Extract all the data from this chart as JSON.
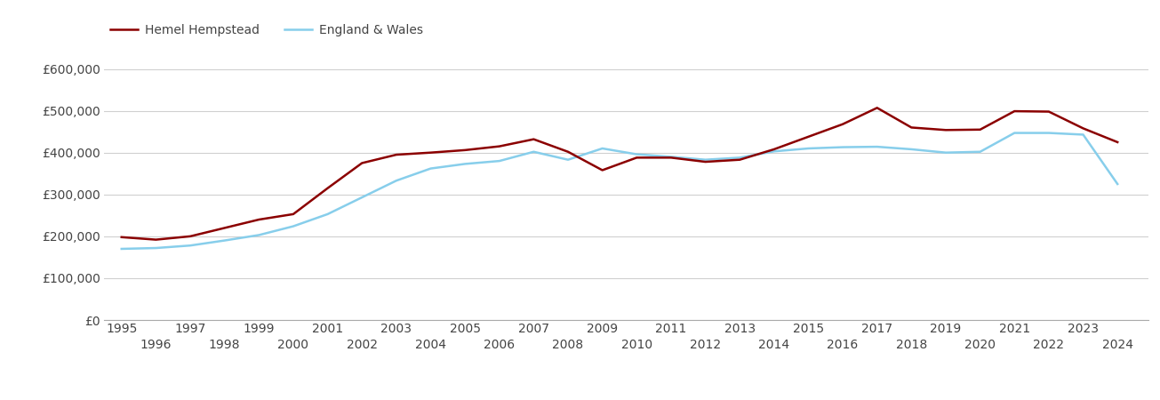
{
  "hemel_years": [
    1995,
    1996,
    1997,
    1998,
    1999,
    2000,
    2001,
    2002,
    2003,
    2004,
    2005,
    2006,
    2007,
    2008,
    2009,
    2010,
    2011,
    2012,
    2013,
    2014,
    2015,
    2016,
    2017,
    2018,
    2019,
    2020,
    2021,
    2022,
    2023,
    2024
  ],
  "hemel_values": [
    198000,
    192000,
    200000,
    220000,
    240000,
    253000,
    315000,
    375000,
    395000,
    400000,
    406000,
    415000,
    432000,
    402000,
    358000,
    388000,
    388000,
    378000,
    383000,
    408000,
    438000,
    468000,
    507000,
    460000,
    454000,
    455000,
    499000,
    498000,
    458000,
    425000
  ],
  "england_years": [
    1995,
    1996,
    1997,
    1998,
    1999,
    2000,
    2001,
    2002,
    2003,
    2004,
    2005,
    2006,
    2007,
    2008,
    2009,
    2010,
    2011,
    2012,
    2013,
    2014,
    2015,
    2016,
    2017,
    2018,
    2019,
    2020,
    2021,
    2022,
    2023,
    2024
  ],
  "england_values": [
    170000,
    172000,
    178000,
    190000,
    203000,
    224000,
    253000,
    293000,
    333000,
    362000,
    373000,
    380000,
    402000,
    383000,
    410000,
    396000,
    390000,
    383000,
    388000,
    403000,
    410000,
    413000,
    414000,
    408000,
    400000,
    402000,
    447000,
    447000,
    443000,
    325000
  ],
  "hemel_color": "#8B0000",
  "england_color": "#87CEEB",
  "legend_labels": [
    "Hemel Hempstead",
    "England & Wales"
  ],
  "ylim": [
    0,
    650000
  ],
  "yticks": [
    0,
    100000,
    200000,
    300000,
    400000,
    500000,
    600000
  ],
  "ytick_labels": [
    "£0",
    "£100,000",
    "£200,000",
    "£300,000",
    "£400,000",
    "£500,000",
    "£600,000"
  ],
  "xlim_min": 1994.5,
  "xlim_max": 2024.9,
  "xtick_odd": [
    1995,
    1997,
    1999,
    2001,
    2003,
    2005,
    2007,
    2009,
    2011,
    2013,
    2015,
    2017,
    2019,
    2021,
    2023
  ],
  "xtick_even": [
    1996,
    1998,
    2000,
    2002,
    2004,
    2006,
    2008,
    2010,
    2012,
    2014,
    2016,
    2018,
    2020,
    2022,
    2024
  ],
  "line_width": 1.8,
  "bg_color": "#ffffff",
  "grid_color": "#d0d0d0",
  "tick_color": "#444444",
  "spine_color": "#aaaaaa",
  "fontsize": 10
}
